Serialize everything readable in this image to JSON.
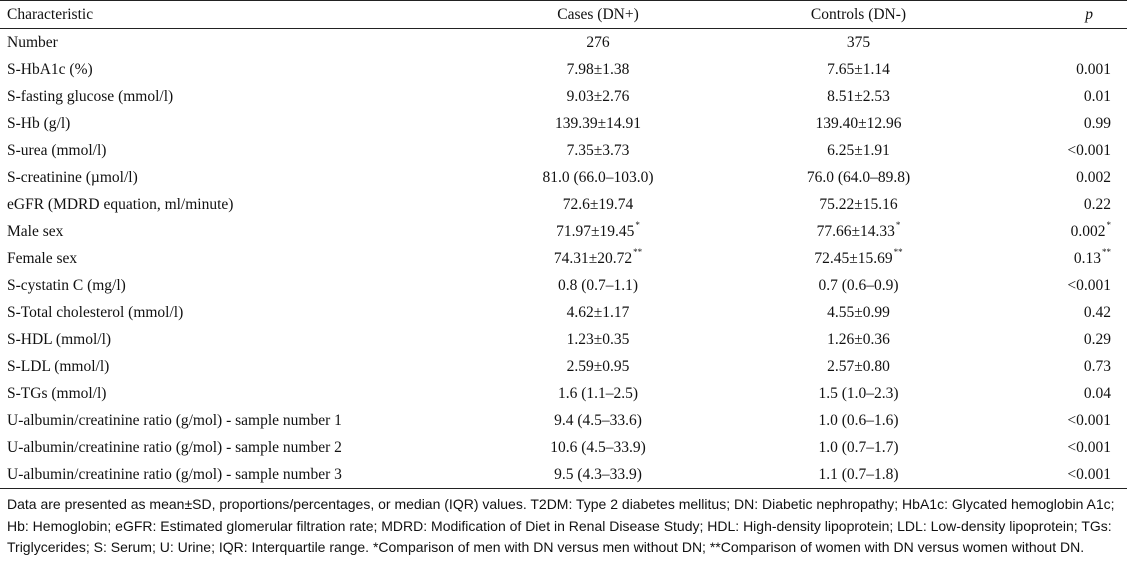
{
  "table": {
    "headers": {
      "characteristic": "Characteristic",
      "cases": "Cases (DN+)",
      "controls": "Controls (DN-)",
      "p": "p"
    },
    "rows": [
      {
        "characteristic": "Number",
        "cases": "276",
        "cases_mark": "",
        "controls": "375",
        "controls_mark": "",
        "p": "",
        "p_mark": ""
      },
      {
        "characteristic": "S-HbA1c (%)",
        "cases": "7.98±1.38",
        "cases_mark": "",
        "controls": "7.65±1.14",
        "controls_mark": "",
        "p": "0.001",
        "p_mark": ""
      },
      {
        "characteristic": "S-fasting glucose (mmol/l)",
        "cases": "9.03±2.76",
        "cases_mark": "",
        "controls": "8.51±2.53",
        "controls_mark": "",
        "p": "0.01",
        "p_mark": ""
      },
      {
        "characteristic": "S-Hb (g/l)",
        "cases": "139.39±14.91",
        "cases_mark": "",
        "controls": "139.40±12.96",
        "controls_mark": "",
        "p": "0.99",
        "p_mark": ""
      },
      {
        "characteristic": "S-urea (mmol/l)",
        "cases": "7.35±3.73",
        "cases_mark": "",
        "controls": "6.25±1.91",
        "controls_mark": "",
        "p": "<0.001",
        "p_mark": ""
      },
      {
        "characteristic": "S-creatinine (µmol/l)",
        "cases": "81.0 (66.0–103.0)",
        "cases_mark": "",
        "controls": "76.0 (64.0–89.8)",
        "controls_mark": "",
        "p": "0.002",
        "p_mark": ""
      },
      {
        "characteristic": "eGFR (MDRD equation, ml/minute)",
        "cases": "72.6±19.74",
        "cases_mark": "",
        "controls": "75.22±15.16",
        "controls_mark": "",
        "p": "0.22",
        "p_mark": ""
      },
      {
        "characteristic": "Male sex",
        "cases": "71.97±19.45",
        "cases_mark": "*",
        "controls": "77.66±14.33",
        "controls_mark": "*",
        "p": "0.002",
        "p_mark": "*"
      },
      {
        "characteristic": "Female sex",
        "cases": "74.31±20.72",
        "cases_mark": "**",
        "controls": "72.45±15.69",
        "controls_mark": "**",
        "p": "0.13",
        "p_mark": "**"
      },
      {
        "characteristic": "S-cystatin C (mg/l)",
        "cases": "0.8 (0.7–1.1)",
        "cases_mark": "",
        "controls": "0.7 (0.6–0.9)",
        "controls_mark": "",
        "p": "<0.001",
        "p_mark": ""
      },
      {
        "characteristic": "S-Total cholesterol (mmol/l)",
        "cases": "4.62±1.17",
        "cases_mark": "",
        "controls": "4.55±0.99",
        "controls_mark": "",
        "p": "0.42",
        "p_mark": ""
      },
      {
        "characteristic": "S-HDL (mmol/l)",
        "cases": "1.23±0.35",
        "cases_mark": "",
        "controls": "1.26±0.36",
        "controls_mark": "",
        "p": "0.29",
        "p_mark": ""
      },
      {
        "characteristic": "S-LDL (mmol/l)",
        "cases": "2.59±0.95",
        "cases_mark": "",
        "controls": "2.57±0.80",
        "controls_mark": "",
        "p": "0.73",
        "p_mark": ""
      },
      {
        "characteristic": "S-TGs (mmol/l)",
        "cases": "1.6 (1.1–2.5)",
        "cases_mark": "",
        "controls": "1.5 (1.0–2.3)",
        "controls_mark": "",
        "p": "0.04",
        "p_mark": ""
      },
      {
        "characteristic": "U-albumin/creatinine ratio (g/mol) - sample number 1",
        "cases": "9.4 (4.5–33.6)",
        "cases_mark": "",
        "controls": "1.0 (0.6–1.6)",
        "controls_mark": "",
        "p": "<0.001",
        "p_mark": ""
      },
      {
        "characteristic": "U-albumin/creatinine ratio (g/mol) - sample number 2",
        "cases": "10.6 (4.5–33.9)",
        "cases_mark": "",
        "controls": "1.0 (0.7–1.7)",
        "controls_mark": "",
        "p": "<0.001",
        "p_mark": ""
      },
      {
        "characteristic": "U-albumin/creatinine ratio (g/mol) - sample number 3",
        "cases": "9.5 (4.3–33.9)",
        "cases_mark": "",
        "controls": "1.1 (0.7–1.8)",
        "controls_mark": "",
        "p": "<0.001",
        "p_mark": ""
      }
    ]
  },
  "footnote": "Data are presented as mean±SD, proportions/percentages, or median (IQR) values. T2DM: Type 2 diabetes mellitus; DN: Diabetic nephropathy; HbA1c: Glycated hemoglobin A1c; Hb: Hemoglobin; eGFR: Estimated glomerular filtration rate; MDRD: Modification of Diet in Renal Disease Study; HDL: High-density lipoprotein; LDL: Low-density lipoprotein; TGs: Triglycerides; S: Serum; U: Urine; IQR: Interquartile range. *Comparison of men with DN versus men without DN; **Comparison of women with DN versus women without DN."
}
